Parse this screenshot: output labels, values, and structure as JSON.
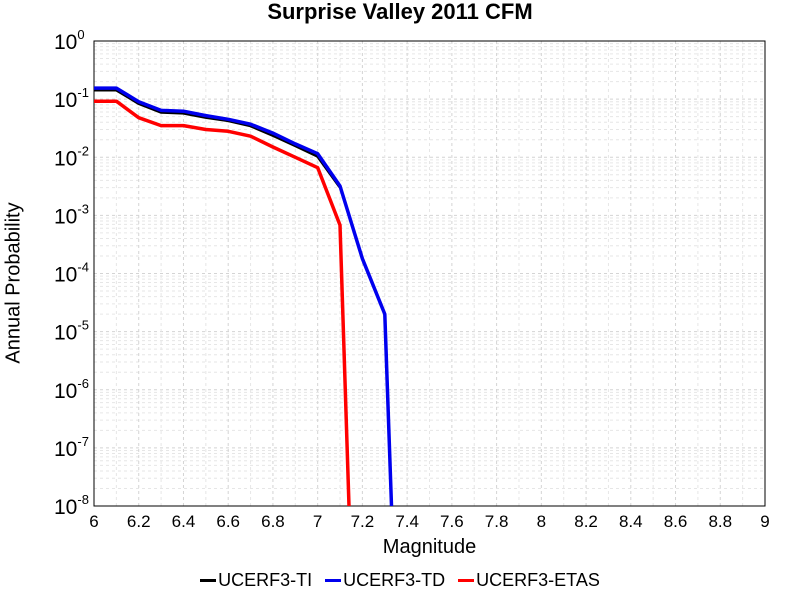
{
  "chart_data": {
    "type": "line",
    "title": "Surprise Valley 2011 CFM",
    "xlabel": "Magnitude",
    "ylabel": "Annual Probability",
    "xlim": [
      6,
      9
    ],
    "ylim": [
      1e-08,
      1
    ],
    "yscale": "log",
    "grid": true,
    "legend_position": "bottom",
    "x_ticks": [
      "6",
      "6.2",
      "6.4",
      "6.6",
      "6.8",
      "7",
      "7.2",
      "7.4",
      "7.6",
      "7.8",
      "8",
      "8.2",
      "8.4",
      "8.6",
      "8.8",
      "9"
    ],
    "y_ticks": [
      {
        "base": "10",
        "exp": "0"
      },
      {
        "base": "10",
        "exp": "-1"
      },
      {
        "base": "10",
        "exp": "-2"
      },
      {
        "base": "10",
        "exp": "-3"
      },
      {
        "base": "10",
        "exp": "-4"
      },
      {
        "base": "10",
        "exp": "-5"
      },
      {
        "base": "10",
        "exp": "-6"
      },
      {
        "base": "10",
        "exp": "-7"
      },
      {
        "base": "10",
        "exp": "-8"
      }
    ],
    "series": [
      {
        "name": "UCERF3-TI",
        "color": "#000000",
        "x": [
          6.0,
          6.1,
          6.2,
          6.3,
          6.4,
          6.5,
          6.6,
          6.7,
          6.8,
          6.9,
          7.0,
          7.1
        ],
        "y": [
          0.145,
          0.145,
          0.085,
          0.06,
          0.058,
          0.049,
          0.043,
          0.035,
          0.024,
          0.016,
          0.0105,
          0.0031
        ]
      },
      {
        "name": "UCERF3-TD",
        "color": "#0000ee",
        "x": [
          6.0,
          6.1,
          6.2,
          6.3,
          6.4,
          6.5,
          6.6,
          6.7,
          6.8,
          6.9,
          7.0,
          7.1,
          7.2,
          7.3,
          7.33
        ],
        "y": [
          0.155,
          0.155,
          0.09,
          0.064,
          0.062,
          0.052,
          0.045,
          0.037,
          0.026,
          0.017,
          0.0115,
          0.0032,
          0.00018,
          2e-05,
          1e-08
        ]
      },
      {
        "name": "UCERF3-ETAS",
        "color": "#ff0000",
        "x": [
          6.0,
          6.1,
          6.2,
          6.3,
          6.4,
          6.5,
          6.6,
          6.7,
          6.8,
          6.9,
          7.0,
          7.1,
          7.14
        ],
        "y": [
          0.092,
          0.092,
          0.048,
          0.035,
          0.035,
          0.03,
          0.028,
          0.023,
          0.015,
          0.01,
          0.0066,
          0.00068,
          1e-08
        ]
      }
    ]
  }
}
